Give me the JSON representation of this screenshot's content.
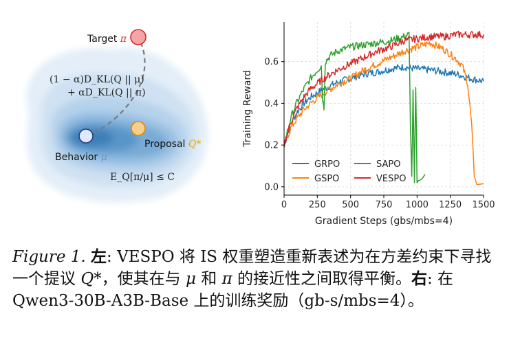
{
  "left_panel": {
    "target_label": "Target",
    "target_symbol": "π",
    "behavior_label": "Behavior",
    "behavior_symbol": "μ",
    "proposal_label": "Proposal",
    "proposal_symbol": "Q*",
    "divergence_line1": "(1 − α)D_KL(Q || μ)",
    "divergence_line2": "+ αD_KL(Q || π)",
    "constraint": "E_Q[π/μ] ≤ C",
    "colors": {
      "target": "#f4a6a6",
      "behavior": "#dfe9fb",
      "proposal": "#f6cf8f",
      "target_text": "#d62728",
      "proposal_text": "#f0a800",
      "behavior_text": "#6699cc"
    }
  },
  "chart_data": {
    "type": "line",
    "xlabel": "Gradient Steps (gbs/mbs=4)",
    "ylabel": "Training Reward",
    "xlim": [
      0,
      1500
    ],
    "ylim": [
      -0.04,
      0.79
    ],
    "xticks": [
      0,
      250,
      500,
      750,
      1000,
      1250,
      1500
    ],
    "yticks": [
      0.0,
      0.2,
      0.4,
      0.6
    ],
    "ytick_labels": [
      "0.0",
      "0.2",
      "0.4",
      "0.6"
    ],
    "grid": true,
    "legend_position": "bottom-left",
    "series": [
      {
        "name": "GRPO",
        "color": "#1f77b4",
        "x": [
          0,
          50,
          100,
          150,
          200,
          300,
          400,
          500,
          600,
          700,
          800,
          900,
          1000,
          1100,
          1200,
          1300,
          1400,
          1500
        ],
        "y": [
          0.2,
          0.3,
          0.36,
          0.4,
          0.43,
          0.47,
          0.5,
          0.52,
          0.54,
          0.55,
          0.565,
          0.575,
          0.565,
          0.56,
          0.55,
          0.54,
          0.52,
          0.505
        ]
      },
      {
        "name": "GSPO",
        "color": "#ff7f0e",
        "x": [
          0,
          50,
          100,
          150,
          200,
          300,
          400,
          500,
          600,
          700,
          800,
          900,
          1000,
          1100,
          1200,
          1300,
          1340,
          1380,
          1410,
          1430,
          1450,
          1500
        ],
        "y": [
          0.2,
          0.28,
          0.33,
          0.37,
          0.4,
          0.45,
          0.49,
          0.52,
          0.56,
          0.59,
          0.62,
          0.65,
          0.67,
          0.69,
          0.66,
          0.61,
          0.58,
          0.5,
          0.3,
          0.05,
          0.01,
          0.015
        ]
      },
      {
        "name": "SAPO",
        "color": "#2ca02c",
        "x": [
          0,
          50,
          100,
          150,
          200,
          250,
          280,
          290,
          300,
          310,
          350,
          400,
          500,
          600,
          700,
          800,
          900,
          940,
          950,
          960,
          970,
          980,
          990,
          1000,
          1010,
          1020,
          1040,
          1060
        ],
        "y": [
          0.2,
          0.33,
          0.41,
          0.47,
          0.52,
          0.56,
          0.58,
          0.42,
          0.38,
          0.6,
          0.63,
          0.65,
          0.67,
          0.68,
          0.69,
          0.7,
          0.72,
          0.73,
          0.3,
          0.05,
          0.45,
          0.02,
          0.47,
          0.02,
          0.03,
          0.03,
          0.04,
          0.06
        ]
      },
      {
        "name": "VESPO",
        "color": "#d62728",
        "x": [
          0,
          50,
          100,
          150,
          200,
          300,
          400,
          500,
          600,
          700,
          800,
          900,
          1000,
          1100,
          1200,
          1300,
          1400,
          1500
        ],
        "y": [
          0.2,
          0.31,
          0.38,
          0.43,
          0.47,
          0.52,
          0.56,
          0.59,
          0.62,
          0.65,
          0.67,
          0.7,
          0.71,
          0.72,
          0.72,
          0.73,
          0.73,
          0.73
        ]
      }
    ]
  },
  "caption": {
    "figure_label": "Figure 1.",
    "left_tag": "左",
    "text1": ": VESPO 将 IS 权重塑造重新表述为在方差约束下寻找一个提议 ",
    "q_star": "Q*",
    "text2": "，使其在与 ",
    "mu": "μ",
    "text3": " 和 ",
    "pi": "π",
    "text4": " 的接近性之间取得平衡。",
    "right_tag": "右",
    "text5": ": 在 Qwen3-30B-A3B-Base 上的训练奖励（gb-s/mbs=4）。"
  }
}
